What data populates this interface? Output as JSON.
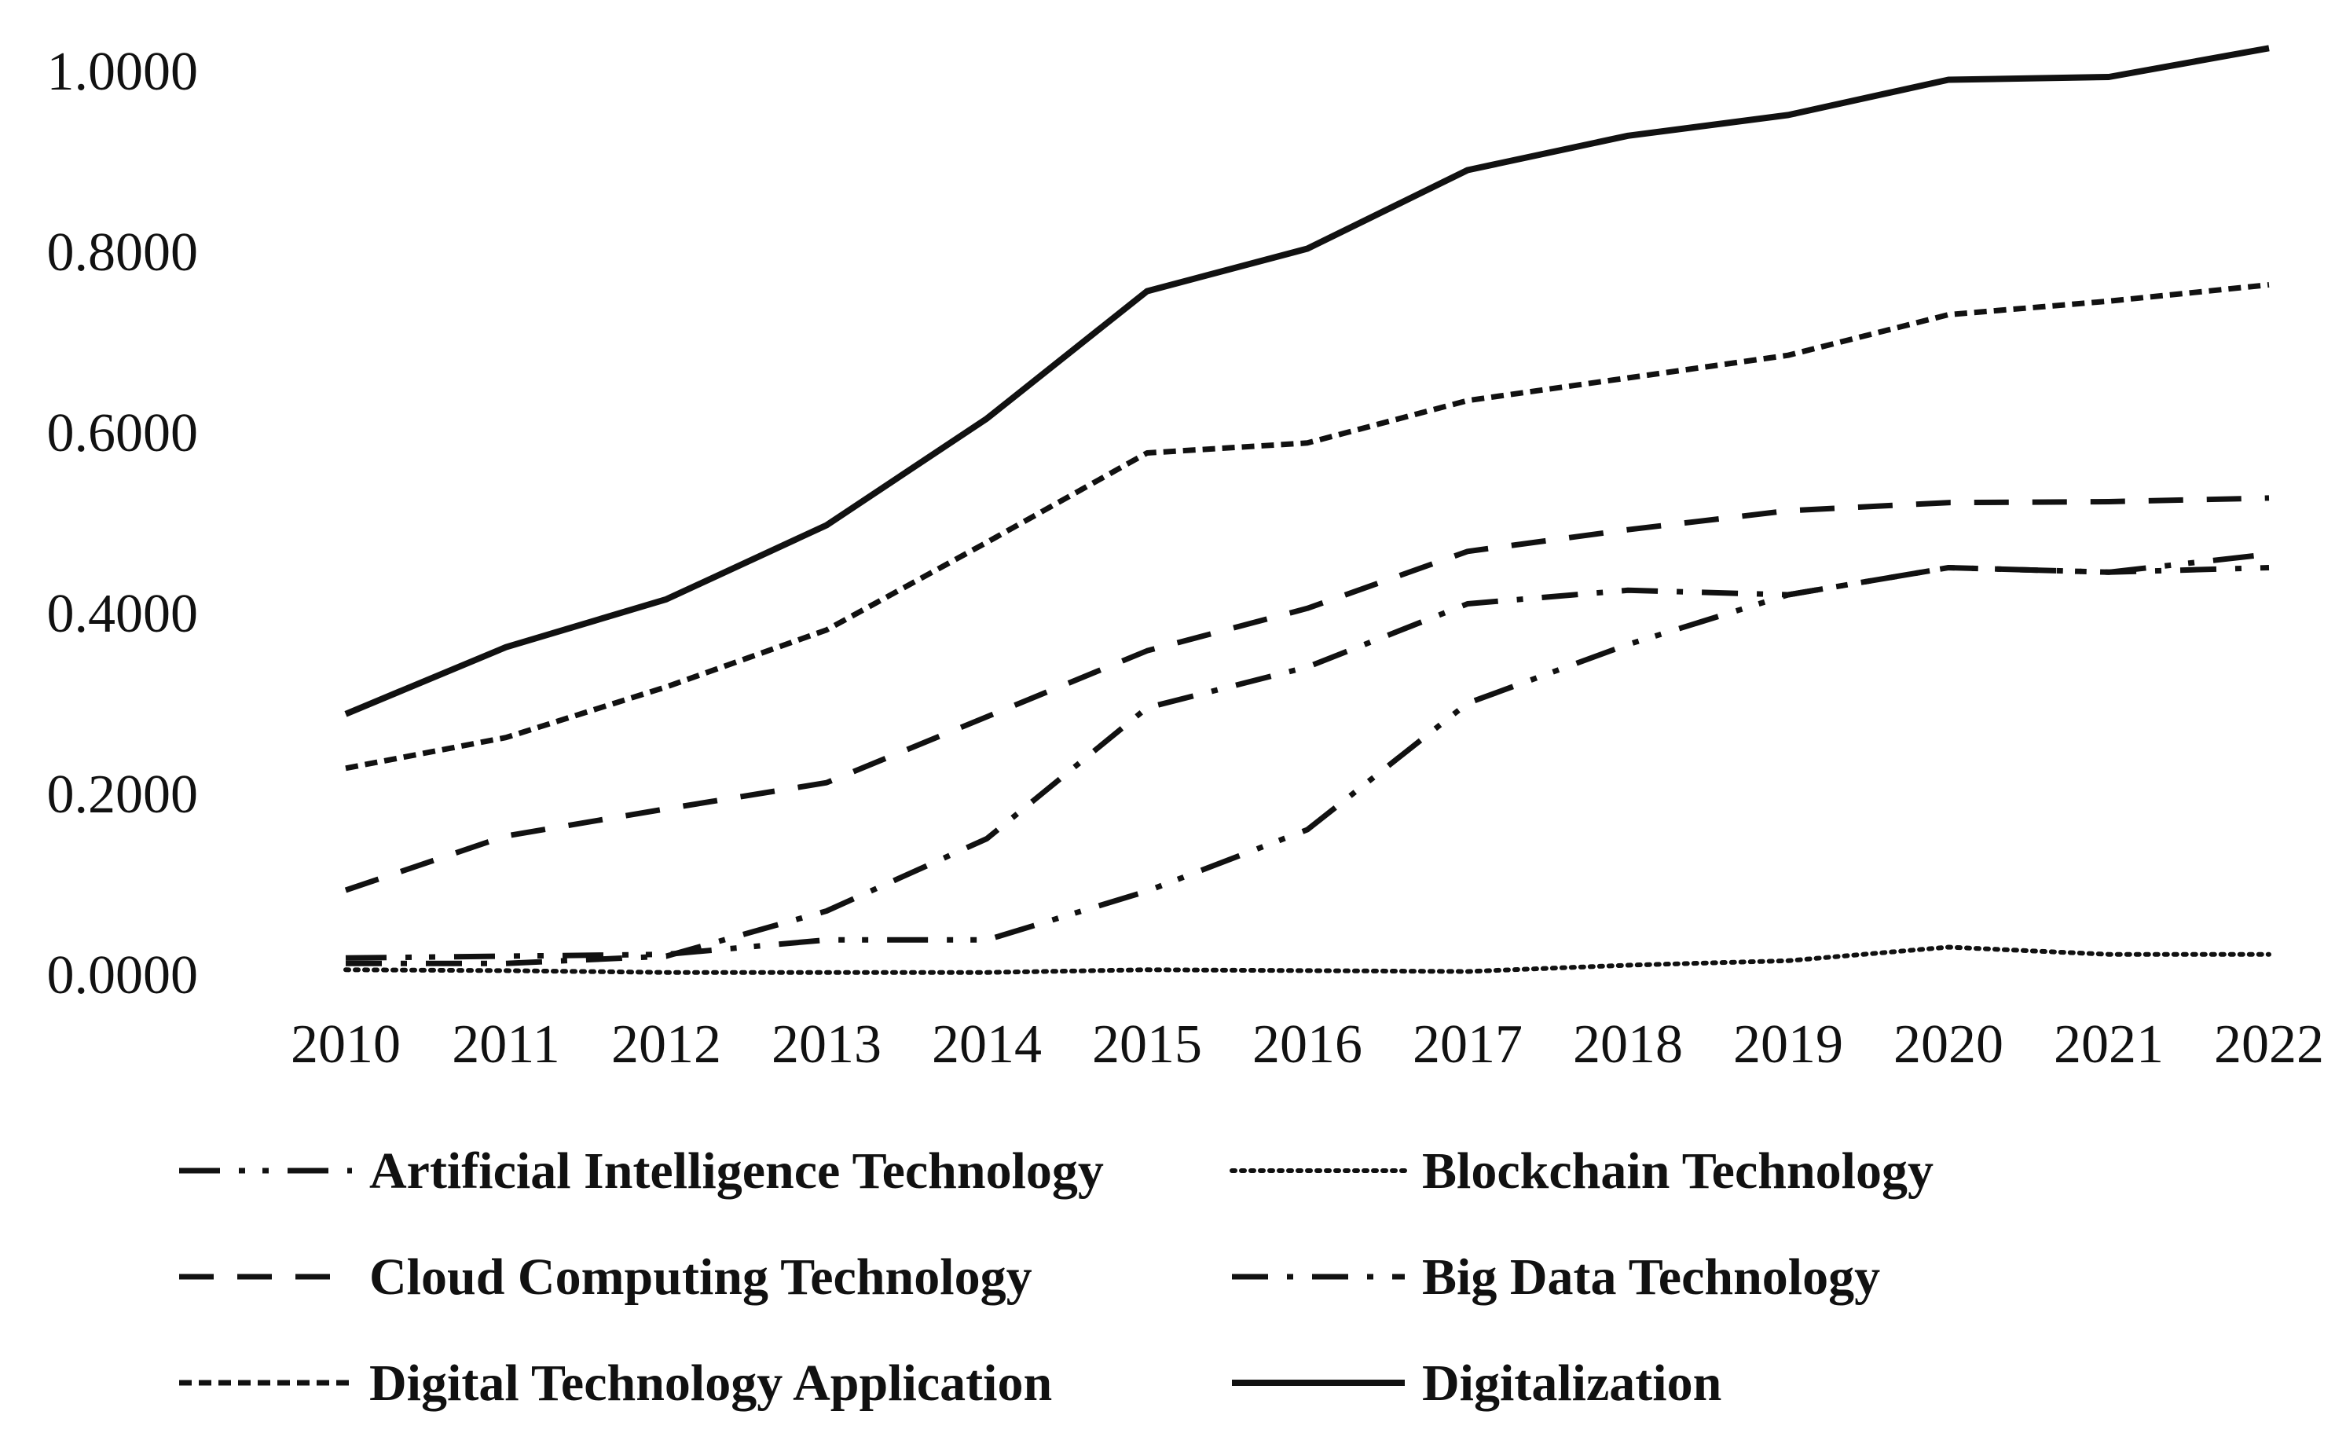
{
  "chart_data": {
    "type": "line",
    "title": "",
    "xlabel": "",
    "ylabel": "",
    "ylim": [
      0,
      1
    ],
    "y_ticks": [
      "0.0000",
      "0.2000",
      "0.4000",
      "0.6000",
      "0.8000",
      "1.0000"
    ],
    "y_tick_values": [
      0,
      0.2,
      0.4,
      0.6,
      0.8,
      1.0
    ],
    "categories": [
      "2010",
      "2011",
      "2012",
      "2013",
      "2014",
      "2015",
      "2016",
      "2017",
      "2018",
      "2019",
      "2020",
      "2021",
      "2022"
    ],
    "grid": false,
    "legend_position": "bottom",
    "series": [
      {
        "name": "Artificial Intelligence Technology",
        "dash": "long-dash-dot-dot",
        "values": [
          0.018,
          0.02,
          0.022,
          0.038,
          0.038,
          0.092,
          0.16,
          0.3,
          0.365,
          0.42,
          0.45,
          0.445,
          0.465
        ]
      },
      {
        "name": "Blockchain Technology",
        "dash": "dotted",
        "values": [
          0.005,
          0.004,
          0.002,
          0.002,
          0.002,
          0.005,
          0.004,
          0.003,
          0.01,
          0.015,
          0.03,
          0.022,
          0.022
        ]
      },
      {
        "name": "Cloud Computing Technology",
        "dash": "long-dash",
        "values": [
          0.093,
          0.153,
          0.183,
          0.212,
          0.285,
          0.358,
          0.405,
          0.468,
          0.492,
          0.513,
          0.522,
          0.523,
          0.527
        ]
      },
      {
        "name": "Big Data Technology",
        "dash": "dash-dot",
        "values": [
          0.012,
          0.012,
          0.02,
          0.07,
          0.15,
          0.295,
          0.34,
          0.41,
          0.425,
          0.42,
          0.45,
          0.445,
          0.45
        ]
      },
      {
        "name": "Digital Technology Application",
        "dash": "short-dash",
        "values": [
          0.228,
          0.262,
          0.318,
          0.381,
          0.478,
          0.577,
          0.588,
          0.635,
          0.66,
          0.685,
          0.73,
          0.745,
          0.763
        ]
      },
      {
        "name": "Digitalization",
        "dash": "solid",
        "values": [
          0.288,
          0.362,
          0.415,
          0.497,
          0.615,
          0.756,
          0.803,
          0.89,
          0.928,
          0.951,
          0.99,
          0.993,
          1.025
        ]
      }
    ]
  }
}
